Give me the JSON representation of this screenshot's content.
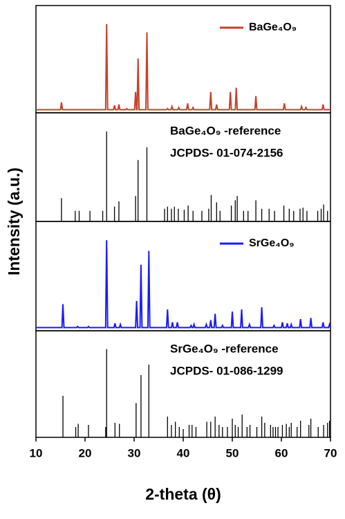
{
  "chart_data": [
    {
      "type": "line",
      "ylabel": "Intensity (a.u.)",
      "xlim": [
        10,
        70
      ],
      "ylim": [
        0,
        100
      ],
      "series": [
        {
          "name": "BaGe₄O₉",
          "color": "#c8402a",
          "x": [
            10,
            15.0,
            15.2,
            15.4,
            24.2,
            24.4,
            24.6,
            25.8,
            26.0,
            26.2,
            26.7,
            26.9,
            27.1,
            28.3,
            28.5,
            28.7,
            30.1,
            30.3,
            30.5,
            30.6,
            30.8,
            31.0,
            32.4,
            32.6,
            32.8,
            36.6,
            36.8,
            37.0,
            37.5,
            37.7,
            37.9,
            38.9,
            39.1,
            39.3,
            40.7,
            40.9,
            41.1,
            41.8,
            42.0,
            42.2,
            45.4,
            45.6,
            45.8,
            46.6,
            46.8,
            47.0,
            49.4,
            49.6,
            49.8,
            50.6,
            50.8,
            51.0,
            54.6,
            54.8,
            55.0,
            60.4,
            60.6,
            60.8,
            63.9,
            64.1,
            64.3,
            64.8,
            65.0,
            65.2,
            68.3,
            68.5,
            68.7,
            70
          ],
          "values": [
            3,
            3,
            10,
            3,
            3,
            85,
            3,
            3,
            7,
            3,
            3,
            8,
            3,
            3,
            4,
            3,
            3,
            20,
            3,
            3,
            52,
            3,
            3,
            77,
            3,
            3,
            4,
            3,
            3,
            6,
            3,
            3,
            5,
            3,
            3,
            9,
            3,
            3,
            5,
            3,
            3,
            20,
            3,
            3,
            8,
            3,
            3,
            20,
            3,
            3,
            24,
            3,
            3,
            16,
            3,
            3,
            9,
            3,
            3,
            6,
            3,
            3,
            5,
            3,
            3,
            8,
            3,
            3
          ]
        }
      ]
    },
    {
      "type": "stem",
      "title": "BaGe₄O₉ -reference",
      "subtitle": "JCPDS- 01-074-2156",
      "xlim": [
        10,
        70
      ],
      "ylim": [
        0,
        100
      ],
      "series": [
        {
          "color": "#000000",
          "x": [
            15.2,
            18.0,
            18.8,
            21.0,
            23.6,
            24.4,
            26.0,
            26.9,
            30.3,
            30.8,
            32.6,
            36.2,
            36.8,
            37.6,
            38.2,
            39.0,
            40.2,
            41.0,
            42.0,
            43.8,
            45.2,
            45.7,
            46.8,
            47.5,
            49.8,
            50.6,
            51.0,
            52.3,
            53.2,
            54.8,
            56.0,
            57.5,
            58.6,
            60.5,
            61.6,
            62.5,
            63.8,
            64.4,
            65.2,
            67.4,
            68.1,
            68.6,
            69.4
          ],
          "values": [
            22,
            10,
            10,
            10,
            10,
            85,
            14,
            19,
            24,
            58,
            70,
            12,
            14,
            12,
            14,
            12,
            11,
            15,
            10,
            10,
            12,
            25,
            18,
            10,
            15,
            20,
            24,
            10,
            10,
            20,
            12,
            12,
            10,
            15,
            12,
            10,
            12,
            13,
            10,
            10,
            12,
            16,
            10
          ]
        }
      ]
    },
    {
      "type": "line",
      "xlim": [
        10,
        70
      ],
      "ylim": [
        0,
        100
      ],
      "series": [
        {
          "name": "SrGe₄O₉",
          "color": "#1a1aff",
          "x": [
            10,
            15.3,
            15.5,
            15.7,
            18.3,
            18.5,
            18.7,
            20.5,
            20.7,
            20.9,
            24.2,
            24.4,
            24.6,
            25.9,
            26.1,
            26.3,
            27.0,
            27.2,
            27.4,
            30.3,
            30.5,
            30.7,
            31.2,
            31.4,
            31.6,
            32.8,
            33.0,
            33.2,
            36.6,
            36.8,
            37.0,
            37.6,
            37.8,
            38.0,
            38.6,
            38.8,
            39.0,
            41.4,
            41.6,
            41.8,
            42.0,
            42.2,
            42.4,
            44.5,
            44.7,
            44.9,
            45.4,
            45.6,
            45.8,
            46.3,
            46.5,
            46.7,
            47.8,
            48.0,
            48.2,
            49.8,
            50.0,
            50.2,
            51.7,
            51.9,
            52.1,
            53.3,
            53.5,
            53.7,
            55.8,
            56.0,
            56.2,
            58.3,
            58.5,
            58.7,
            60.0,
            60.2,
            60.4,
            61.0,
            61.2,
            61.4,
            61.8,
            62.0,
            62.2,
            63.7,
            63.9,
            64.1,
            65.8,
            66.0,
            66.2,
            68.3,
            68.5,
            68.7,
            69.6,
            69.8,
            70.0
          ],
          "values": [
            3,
            3,
            25,
            3,
            3,
            4,
            3,
            3,
            4,
            3,
            3,
            85,
            3,
            3,
            7,
            3,
            3,
            6,
            3,
            3,
            28,
            3,
            3,
            62,
            3,
            3,
            75,
            3,
            3,
            20,
            3,
            3,
            8,
            3,
            3,
            8,
            3,
            3,
            5,
            3,
            3,
            6,
            3,
            3,
            6,
            3,
            3,
            10,
            3,
            3,
            16,
            3,
            3,
            5,
            3,
            3,
            18,
            3,
            3,
            20,
            3,
            3,
            6,
            3,
            3,
            22,
            3,
            3,
            5,
            3,
            3,
            8,
            3,
            3,
            7,
            3,
            3,
            6,
            3,
            3,
            11,
            3,
            3,
            12,
            3,
            3,
            8,
            3,
            3,
            6,
            3
          ]
        }
      ]
    },
    {
      "type": "stem",
      "title": "SrGe₄O₉ -reference",
      "subtitle": "JCPDS- 01-086-1299",
      "xlabel": "2-theta (θ)",
      "xlim": [
        10,
        70
      ],
      "ylim": [
        0,
        100
      ],
      "xticks": [
        10,
        20,
        30,
        40,
        50,
        60,
        70
      ],
      "series": [
        {
          "color": "#000000",
          "x": [
            15.5,
            18.1,
            18.6,
            20.7,
            24.2,
            24.4,
            26.1,
            27.0,
            30.4,
            31.4,
            33.0,
            36.8,
            37.6,
            38.4,
            39.2,
            40.0,
            41.2,
            41.8,
            42.6,
            44.8,
            45.6,
            46.5,
            47.3,
            48.0,
            49.0,
            50.0,
            50.6,
            51.2,
            52.0,
            53.0,
            53.6,
            55.0,
            56.0,
            56.6,
            57.8,
            58.3,
            58.8,
            59.3,
            60.2,
            61.0,
            61.6,
            62.0,
            63.2,
            63.9,
            65.6,
            66.0,
            67.5,
            68.6,
            69.4,
            69.8
          ],
          "values": [
            40,
            10,
            13,
            12,
            10,
            85,
            14,
            13,
            33,
            60,
            70,
            20,
            12,
            15,
            10,
            8,
            12,
            12,
            10,
            15,
            15,
            20,
            12,
            10,
            10,
            18,
            12,
            10,
            22,
            10,
            12,
            10,
            20,
            14,
            12,
            10,
            10,
            10,
            12,
            13,
            10,
            14,
            10,
            16,
            12,
            18,
            10,
            12,
            14,
            16
          ]
        }
      ]
    }
  ]
}
